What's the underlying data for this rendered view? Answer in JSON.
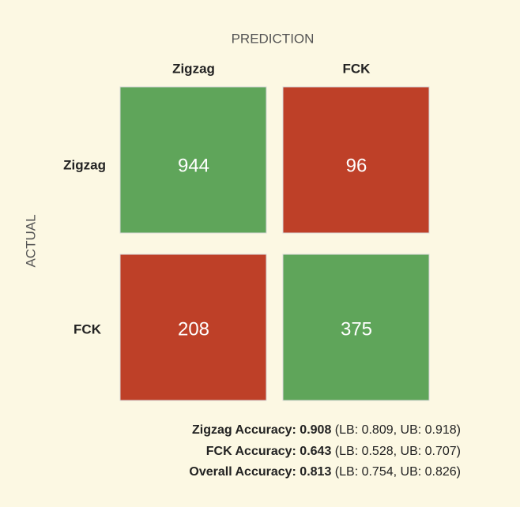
{
  "axis_titles": {
    "columns": "PREDICTION",
    "rows": "ACTUAL"
  },
  "columns": [
    "Zigzag",
    "FCK"
  ],
  "rows": [
    "Zigzag",
    "FCK"
  ],
  "matrix": [
    [
      944,
      96
    ],
    [
      208,
      375
    ]
  ],
  "accuracy": [
    {
      "label": "Zigzag Accuracy: 0.908",
      "detail": "(LB: 0.809, UB: 0.918)"
    },
    {
      "label": "FCK Accuracy: 0.643",
      "detail": "(LB: 0.528, UB: 0.707)"
    },
    {
      "label": "Overall Accuracy: 0.813",
      "detail": "(LB: 0.754, UB: 0.826)"
    }
  ]
}
